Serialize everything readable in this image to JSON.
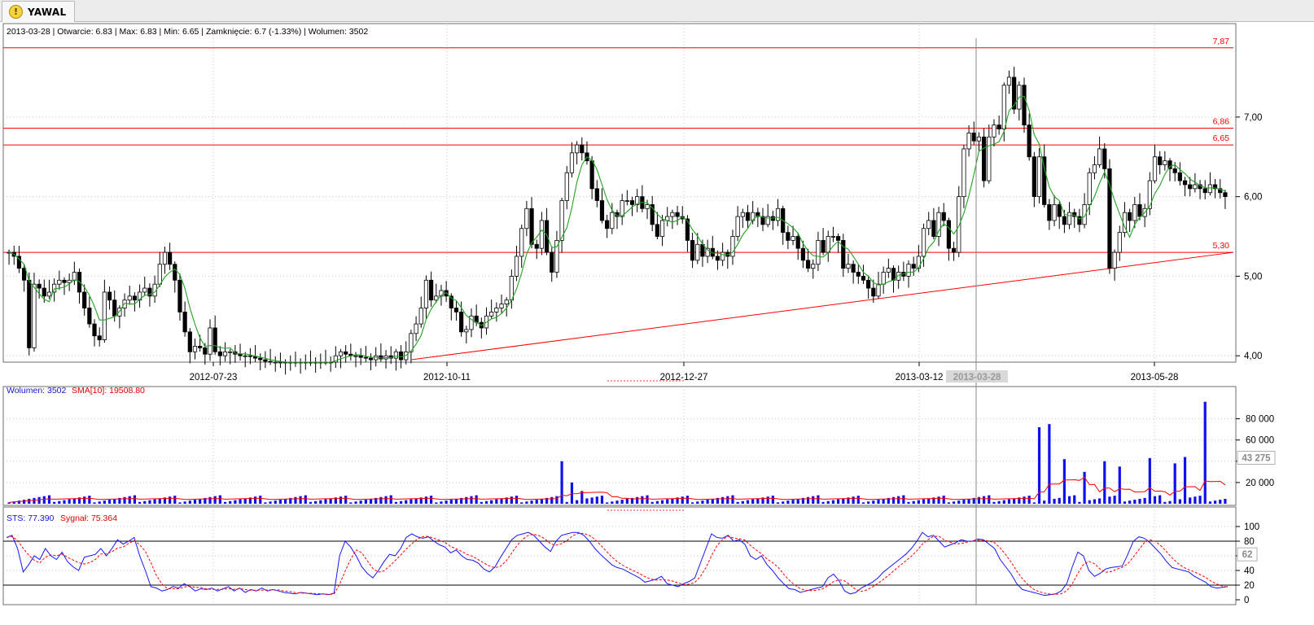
{
  "tab": {
    "title": "YAWAL",
    "icon": "warning-icon"
  },
  "info_line": "2013-03-28 | Otwarcie: 6.83 | Max: 6.83 | Min: 6.65 | Zamknięcie: 6.7 (-1.33%)  | Wolumen: 3502",
  "volume_header": {
    "volume": "Wolumen: 3502",
    "sma": "SMA[10]: 19508.80"
  },
  "sts_header": {
    "sts": "STS: 77.390",
    "signal": "Sygnał: 75.364"
  },
  "chart_data": {
    "type": "candlestick",
    "x_labels": [
      "2012-07-23",
      "2012-10-11",
      "2012-12-27",
      "2013-03-12",
      "2013-05-28"
    ],
    "cursor_label": "2013-03-28",
    "price": {
      "ylim": [
        3.92,
        7.97
      ],
      "ticks": [
        "4,00",
        "5,00",
        "6,00",
        "7,00"
      ],
      "levels": [
        {
          "value": 7.87,
          "label": "7,87"
        },
        {
          "value": 6.86,
          "label": "6,86"
        },
        {
          "value": 6.65,
          "label": "6,65"
        },
        {
          "value": 5.3,
          "label": "5,30"
        }
      ],
      "trendline": {
        "from": 3.95,
        "to": 5.3
      },
      "up_color": "#ffffff",
      "down_color": "#000000",
      "ma_color": "#22a322",
      "level_color": "#ff0000",
      "closes": [
        5.3,
        5.25,
        5.1,
        4.95,
        4.1,
        4.9,
        4.85,
        4.75,
        4.8,
        4.9,
        4.95,
        4.92,
        4.95,
        5.05,
        4.8,
        4.6,
        4.4,
        4.25,
        4.2,
        4.8,
        4.7,
        4.5,
        4.6,
        4.7,
        4.75,
        4.7,
        4.8,
        4.85,
        4.75,
        4.9,
        5.15,
        5.3,
        5.15,
        4.95,
        4.55,
        4.3,
        4.05,
        4.12,
        4.1,
        4.02,
        4.35,
        4.05,
        4.0,
        4.05,
        4.05,
        4.02,
        4.0,
        4.0,
        3.99,
        3.97,
        3.95,
        3.93,
        3.92,
        3.92,
        3.92,
        3.92,
        3.92,
        3.92,
        3.92,
        3.92,
        3.92,
        3.92,
        3.92,
        3.92,
        3.92,
        4.0,
        4.05,
        4.02,
        4.0,
        4.0,
        3.98,
        3.97,
        3.95,
        4.0,
        3.96,
        4.0,
        3.97,
        4.05,
        3.95,
        4.05,
        4.28,
        4.4,
        4.6,
        4.95,
        4.7,
        4.75,
        4.82,
        4.75,
        4.6,
        4.55,
        4.3,
        4.33,
        4.5,
        4.42,
        4.35,
        4.5,
        4.55,
        4.6,
        4.65,
        4.7,
        5.0,
        5.25,
        5.6,
        5.85,
        5.4,
        5.35,
        5.7,
        5.3,
        5.05,
        5.45,
        5.95,
        6.3,
        6.55,
        6.65,
        6.55,
        6.45,
        6.1,
        5.95,
        5.7,
        5.6,
        5.8,
        5.75,
        5.95,
        5.95,
        5.9,
        6.0,
        5.85,
        5.9,
        5.65,
        5.5,
        5.7,
        5.75,
        5.8,
        5.75,
        5.72,
        5.45,
        5.2,
        5.4,
        5.25,
        5.35,
        5.25,
        5.2,
        5.3,
        5.25,
        5.5,
        5.75,
        5.8,
        5.7,
        5.8,
        5.75,
        5.65,
        5.75,
        5.7,
        5.85,
        5.55,
        5.45,
        5.5,
        5.35,
        5.2,
        5.1,
        5.15,
        5.45,
        5.3,
        5.5,
        5.5,
        5.45,
        5.1,
        5.15,
        5.05,
        5.0,
        4.95,
        4.85,
        4.75,
        4.9,
        5.05,
        5.1,
        4.95,
        5.05,
        5.0,
        5.15,
        5.1,
        5.25,
        5.6,
        5.7,
        5.5,
        5.8,
        5.7,
        5.35,
        5.3,
        6.0,
        6.6,
        6.8,
        6.7,
        6.75,
        6.2,
        6.75,
        6.9,
        6.85,
        7.4,
        7.5,
        7.1,
        7.4,
        6.9,
        6.5,
        6.0,
        6.5,
        5.9,
        5.7,
        5.9,
        5.75,
        5.65,
        5.8,
        5.75,
        5.65,
        5.9,
        6.3,
        6.4,
        6.6,
        6.35,
        5.1,
        5.3,
        5.55,
        5.8,
        5.7,
        5.9,
        5.75,
        5.85,
        6.2,
        6.5,
        6.4,
        6.45,
        6.35,
        6.3,
        6.2,
        6.15,
        6.1,
        6.15,
        6.1,
        6.05,
        6.15,
        6.1,
        6.05,
        6.0
      ],
      "candle_range": 0.12
    },
    "volume": {
      "ylim": [
        0,
        95000
      ],
      "ticks": [
        "20 000",
        "40 000",
        "60 000",
        "80 000"
      ],
      "marker": "43 275",
      "bar_color": "#1010ee",
      "sma_color": "#ff0000",
      "spikes": [
        [
          110,
          40000
        ],
        [
          112,
          20000
        ],
        [
          114,
          12000
        ],
        [
          205,
          72000
        ],
        [
          207,
          75000
        ],
        [
          210,
          42000
        ],
        [
          214,
          30000
        ],
        [
          218,
          40000
        ],
        [
          221,
          35000
        ],
        [
          227,
          43000
        ],
        [
          232,
          38000
        ],
        [
          234,
          44000
        ],
        [
          238,
          96000
        ],
        [
          247,
          22000
        ],
        [
          249,
          42000
        ]
      ],
      "base": 4200
    },
    "sts": {
      "ylim": [
        0,
        100
      ],
      "ticks": [
        "0",
        "20",
        "40",
        "60",
        "80",
        "100"
      ],
      "levels": [
        20,
        80
      ],
      "marker": "62",
      "sts_color": "#1515ff",
      "signal_color": "#ff0000",
      "values": [
        85,
        88,
        70,
        38,
        48,
        60,
        55,
        70,
        60,
        55,
        65,
        52,
        45,
        40,
        58,
        60,
        62,
        70,
        60,
        70,
        82,
        76,
        80,
        85,
        60,
        40,
        18,
        16,
        12,
        14,
        18,
        16,
        22,
        18,
        12,
        15,
        14,
        16,
        12,
        15,
        18,
        12,
        16,
        10,
        14,
        12,
        16,
        12,
        14,
        12,
        10,
        9,
        8,
        10,
        9,
        8,
        7,
        8,
        7,
        9,
        60,
        80,
        72,
        60,
        45,
        36,
        30,
        40,
        52,
        62,
        60,
        70,
        85,
        90,
        86,
        84,
        86,
        80,
        75,
        72,
        64,
        68,
        60,
        55,
        54,
        50,
        42,
        38,
        45,
        58,
        70,
        82,
        88,
        90,
        92,
        88,
        80,
        72,
        66,
        80,
        88,
        90,
        92,
        92,
        88,
        80,
        70,
        62,
        55,
        48,
        44,
        42,
        38,
        34,
        30,
        24,
        26,
        28,
        32,
        22,
        20,
        18,
        22,
        25,
        30,
        50,
        70,
        90,
        85,
        84,
        88,
        80,
        82,
        76,
        60,
        55,
        60,
        48,
        40,
        30,
        22,
        15,
        14,
        10,
        12,
        14,
        16,
        18,
        30,
        35,
        26,
        12,
        8,
        10,
        16,
        20,
        24,
        30,
        38,
        44,
        50,
        56,
        62,
        70,
        80,
        92,
        86,
        88,
        80,
        72,
        75,
        78,
        82,
        80,
        80,
        83,
        82,
        76,
        70,
        55,
        45,
        35,
        22,
        14,
        12,
        10,
        8,
        6,
        7,
        8,
        12,
        22,
        45,
        65,
        60,
        40,
        32,
        36,
        42,
        44,
        45,
        46,
        62,
        80,
        86,
        84,
        78,
        70,
        62,
        52,
        44,
        42,
        40,
        38,
        32,
        28,
        24,
        18,
        16,
        17,
        18
      ],
      "signal_lag": 3
    }
  }
}
